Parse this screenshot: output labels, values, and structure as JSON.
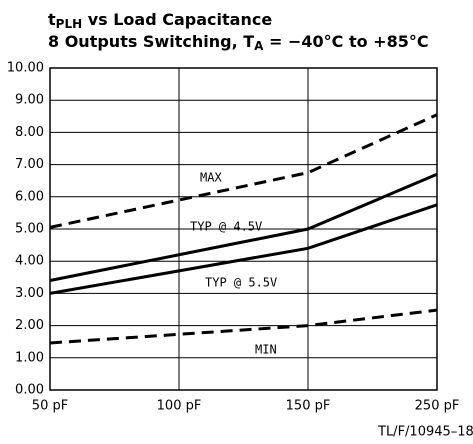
{
  "chart_data": {
    "type": "line",
    "title": [
      "t",
      "PLH",
      " vs Load Capacitance"
    ],
    "subtitle": [
      "8 Outputs Switching, T",
      "A",
      " = −40°C to +85°C"
    ],
    "footnote": "TL/F/10945–18",
    "categories": [
      "50 pF",
      "100 pF",
      "150 pF",
      "250 pF"
    ],
    "series": [
      {
        "name": "MAX",
        "color": "#000000",
        "dashed": true,
        "values": [
          5.05,
          5.9,
          6.75,
          8.55
        ]
      },
      {
        "name": "TYP @ 4.5V",
        "color": "#000000",
        "dashed": false,
        "values": [
          3.4,
          4.2,
          5.0,
          6.7
        ]
      },
      {
        "name": "TYP @ 5.5V",
        "color": "#000000",
        "dashed": false,
        "values": [
          3.0,
          3.7,
          4.4,
          5.75
        ]
      },
      {
        "name": "MIN",
        "color": "#000000",
        "dashed": true,
        "values": [
          1.46,
          1.73,
          2.0,
          2.48
        ]
      }
    ],
    "ylim": [
      0,
      10
    ],
    "yticks": [
      {
        "value": 0,
        "label": "0.00"
      },
      {
        "value": 1,
        "label": "1.00"
      },
      {
        "value": 2,
        "label": "2.00"
      },
      {
        "value": 3,
        "label": "3.00"
      },
      {
        "value": 4,
        "label": "4.00"
      },
      {
        "value": 5,
        "label": "5.00"
      },
      {
        "value": 6,
        "label": "6.00"
      },
      {
        "value": 7,
        "label": "7.00"
      },
      {
        "value": 8,
        "label": "8.00"
      },
      {
        "value": 9,
        "label": "9.00"
      },
      {
        "value": 10,
        "label": "10.00"
      }
    ],
    "grid": true
  }
}
